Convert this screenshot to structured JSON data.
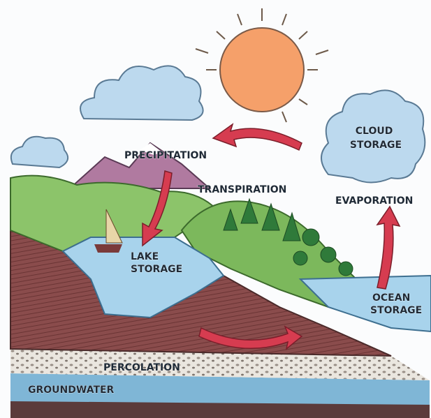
{
  "labels": {
    "cloud_storage": [
      "CLOUD",
      "STORAGE"
    ],
    "precipitation": "PRECIPITATION",
    "transpiration": "TRANSPIRATION",
    "evaporation": "EVAPORATION",
    "lake_storage": [
      "LAKE",
      "STORAGE"
    ],
    "ocean_storage": [
      "OCEAN",
      "STORAGE"
    ],
    "percolation": "PERCOLATION",
    "groundwater": "GROUNDWATER"
  }
}
